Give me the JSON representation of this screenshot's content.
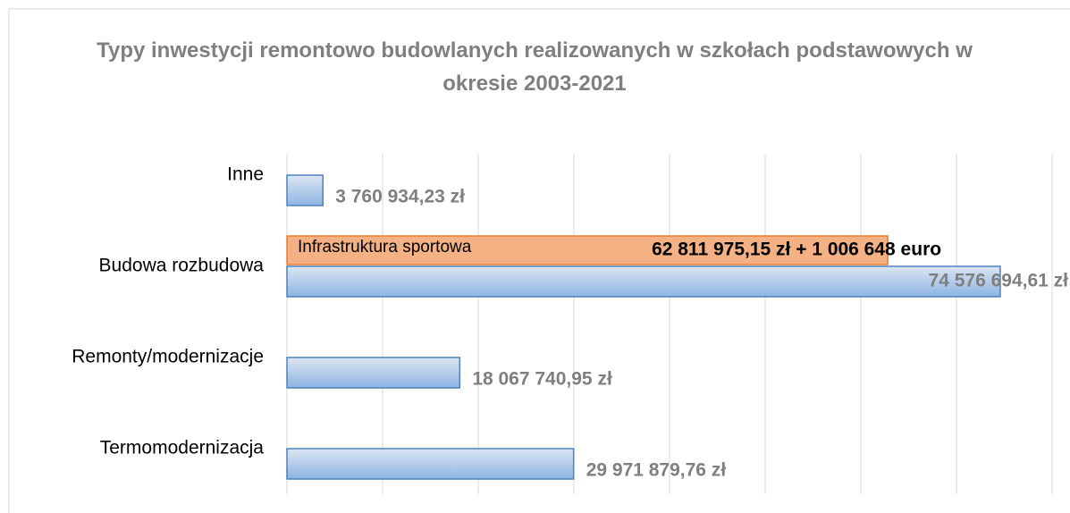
{
  "chart_data": {
    "type": "bar",
    "orientation": "horizontal",
    "title": "Typy inwestycji remontowo budowlanych realizowanych w szkołach podstawowych w okresie 2003-2021",
    "categories": [
      "Inne",
      "Budowa rozbudowa",
      "Remonty/modernizacje",
      "Termomodernizacja"
    ],
    "series": [
      {
        "color": "#8db4e2",
        "values": [
          3760934.23,
          74576694.61,
          18067740.95,
          29971879.76
        ],
        "value_labels": [
          "3 760 934,23 zł",
          "74 576 694,61 zł",
          "18 067 740,95 zł",
          "29 971 879,76 zł"
        ]
      },
      {
        "name": "Infrastruktura sportowa",
        "color": "#f4b183",
        "values": [
          null,
          62811975.15,
          null,
          null
        ],
        "value_labels": [
          null,
          "62 811 975,15 zł + 1 006 648 euro",
          null,
          null
        ]
      }
    ],
    "xlim": [
      0,
      80000000
    ],
    "xticks": [
      0,
      10000000,
      20000000,
      30000000,
      40000000,
      50000000,
      60000000,
      70000000,
      80000000
    ],
    "grid": true
  }
}
